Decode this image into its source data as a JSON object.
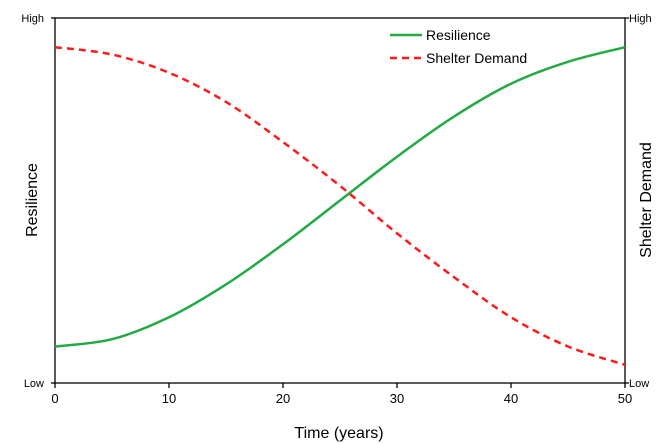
{
  "chart_data": {
    "type": "line",
    "title": "",
    "xlabel": "Time (years)",
    "ylabel_left": "Resilience",
    "ylabel_right": "Shelter Demand",
    "xlim": [
      0,
      50
    ],
    "x_ticks": [
      "0",
      "10",
      "20",
      "30",
      "40",
      "50"
    ],
    "y_axis_labels": {
      "left_high": "High",
      "left_low": "Low",
      "right_high": "High",
      "right_low": "Low"
    },
    "ylim": [
      0,
      1
    ],
    "grid": false,
    "legend_position": "top-right",
    "x": [
      0,
      5,
      10,
      15,
      20,
      25,
      30,
      35,
      40,
      45,
      50
    ],
    "series": [
      {
        "name": "Resilience",
        "color": "#22aa44",
        "style": "solid",
        "values": [
          0.1,
          0.12,
          0.18,
          0.27,
          0.38,
          0.5,
          0.62,
          0.73,
          0.82,
          0.88,
          0.92
        ]
      },
      {
        "name": "Shelter Demand",
        "color": "#ff1a1a",
        "style": "dashed",
        "values": [
          0.92,
          0.9,
          0.85,
          0.77,
          0.66,
          0.54,
          0.41,
          0.29,
          0.18,
          0.1,
          0.05
        ]
      }
    ]
  }
}
